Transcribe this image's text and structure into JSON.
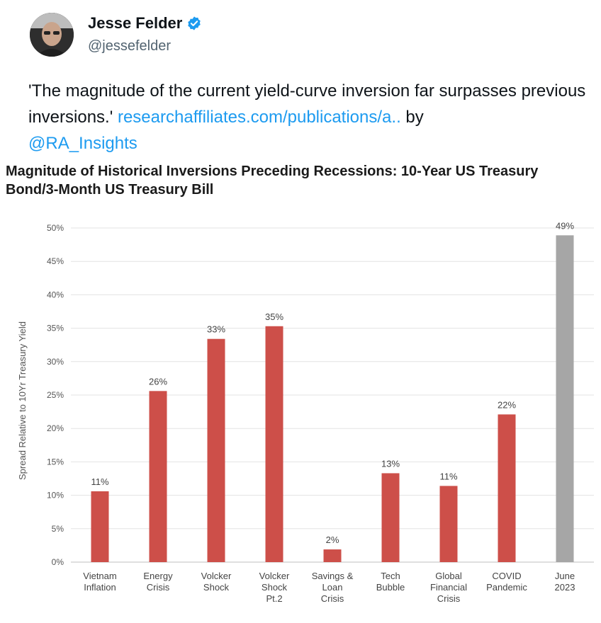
{
  "tweet": {
    "author_name": "Jesse Felder",
    "handle": "@jessefelder",
    "text_quote": "'The magnitude of the current yield-curve inversion far surpasses previous inversions.'",
    "link_text": "researchaffiliates.com/publications/a..",
    "text_by": "by",
    "mention": "@RA_Insights"
  },
  "colors": {
    "bar_red": "#cd4f49",
    "bar_gray": "#a6a6a6",
    "link_blue": "#1d9bf0",
    "verified_blue": "#1d9bf0"
  },
  "chart_data": {
    "type": "bar",
    "title": "Magnitude of Historical Inversions Preceding Recessions: 10-Year US Treasury Bond/3-Month US Treasury Bill",
    "ylabel": "Spread Relative to 10Yr Treasury Yield",
    "xlabel": "",
    "ylim": [
      0,
      50
    ],
    "yticks": [
      "0%",
      "5%",
      "10%",
      "15%",
      "20%",
      "25%",
      "30%",
      "35%",
      "40%",
      "45%",
      "50%"
    ],
    "grid": true,
    "categories": [
      [
        "Vietnam",
        "Inflation"
      ],
      [
        "Energy",
        "Crisis"
      ],
      [
        "Volcker",
        "Shock"
      ],
      [
        "Volcker",
        "Shock",
        "Pt.2"
      ],
      [
        "Savings &",
        "Loan",
        "Crisis"
      ],
      [
        "Tech",
        "Bubble"
      ],
      [
        "Global",
        "Financial",
        "Crisis"
      ],
      [
        "COVID",
        "Pandemic"
      ],
      [
        "June",
        "2023"
      ]
    ],
    "values": [
      10.6,
      25.6,
      33.4,
      35.3,
      1.9,
      13.3,
      11.4,
      22.1,
      48.9
    ],
    "data_labels": [
      "11%",
      "26%",
      "33%",
      "35%",
      "2%",
      "13%",
      "11%",
      "22%",
      "49%"
    ],
    "highlight_last": true
  }
}
